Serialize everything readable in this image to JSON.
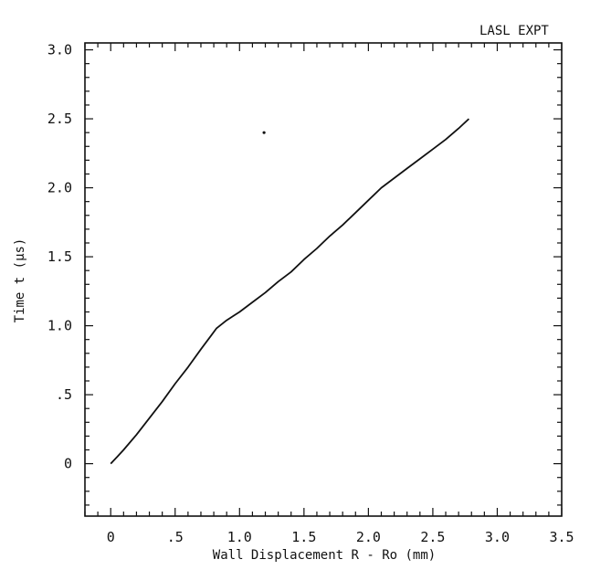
{
  "chart_data": {
    "type": "line",
    "annotation": "LASL EXPT",
    "xlabel": "Wall Displacement R - Ro (mm)",
    "ylabel": "Time t (μs)",
    "xlim": [
      -0.2,
      3.5
    ],
    "ylim": [
      -0.38,
      3.05
    ],
    "x_ticks": [
      0,
      0.5,
      1.0,
      1.5,
      2.0,
      2.5,
      3.0,
      3.5
    ],
    "x_tick_labels": [
      "0",
      ".5",
      "1.0",
      "1.5",
      "2.0",
      "2.5",
      "3.0",
      "3.5"
    ],
    "y_ticks": [
      0,
      0.5,
      1.0,
      1.5,
      2.0,
      2.5,
      3.0
    ],
    "y_tick_labels": [
      "0",
      ".5",
      "1.0",
      "1.5",
      "2.0",
      "2.5",
      "3.0"
    ],
    "grid": false,
    "series": [
      {
        "x": [
          0.0,
          0.05,
          0.1,
          0.2,
          0.3,
          0.4,
          0.5,
          0.6,
          0.7,
          0.78,
          0.82,
          0.9,
          1.0,
          1.1,
          1.2,
          1.3,
          1.4,
          1.5,
          1.6,
          1.7,
          1.8,
          1.9,
          2.0,
          2.1,
          2.2,
          2.3,
          2.4,
          2.5,
          2.6,
          2.7,
          2.78
        ],
        "y": [
          0.0,
          0.05,
          0.1,
          0.21,
          0.33,
          0.45,
          0.58,
          0.7,
          0.83,
          0.93,
          0.98,
          1.04,
          1.1,
          1.17,
          1.24,
          1.32,
          1.39,
          1.48,
          1.56,
          1.65,
          1.73,
          1.82,
          1.91,
          2.0,
          2.07,
          2.14,
          2.21,
          2.28,
          2.35,
          2.43,
          2.5
        ]
      }
    ],
    "points": [
      {
        "x": 1.19,
        "y": 2.4
      }
    ]
  }
}
